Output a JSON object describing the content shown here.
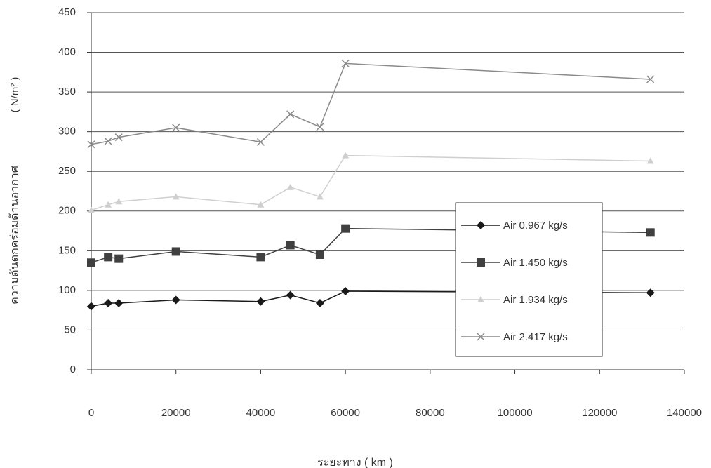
{
  "chart_data": {
    "type": "line",
    "x_label": "ระยะทาง ( km )",
    "y_label": "ความดันตกคร่อมด้านอากาศ",
    "y_unit": "( N/m² )",
    "x": [
      0,
      4000,
      6500,
      20000,
      40000,
      47000,
      54000,
      60000,
      132000
    ],
    "series": [
      {
        "name": "Air 0.967 kg/s",
        "color": "#1a1a1a",
        "marker": "diamond",
        "values": [
          80,
          84,
          84,
          88,
          86,
          94,
          84,
          99,
          97
        ]
      },
      {
        "name": "Air 1.450 kg/s",
        "color": "#404040",
        "marker": "square",
        "values": [
          135,
          142,
          140,
          149,
          142,
          157,
          145,
          178,
          173
        ]
      },
      {
        "name": "Air 1.934 kg/s",
        "color": "#cfcfcf",
        "marker": "triangle",
        "values": [
          201,
          208,
          212,
          218,
          208,
          230,
          218,
          270,
          263
        ]
      },
      {
        "name": "Air 2.417 kg/s",
        "color": "#8a8a8a",
        "marker": "cross",
        "values": [
          284,
          288,
          293,
          305,
          287,
          322,
          306,
          386,
          366
        ]
      }
    ],
    "xlim": [
      0,
      140000
    ],
    "xticks": [
      0,
      20000,
      40000,
      60000,
      80000,
      100000,
      120000,
      140000
    ],
    "ylim": [
      0,
      450
    ],
    "yticks": [
      0,
      50,
      100,
      150,
      200,
      250,
      300,
      350,
      400,
      450
    ],
    "grid": true,
    "legend": "right"
  }
}
